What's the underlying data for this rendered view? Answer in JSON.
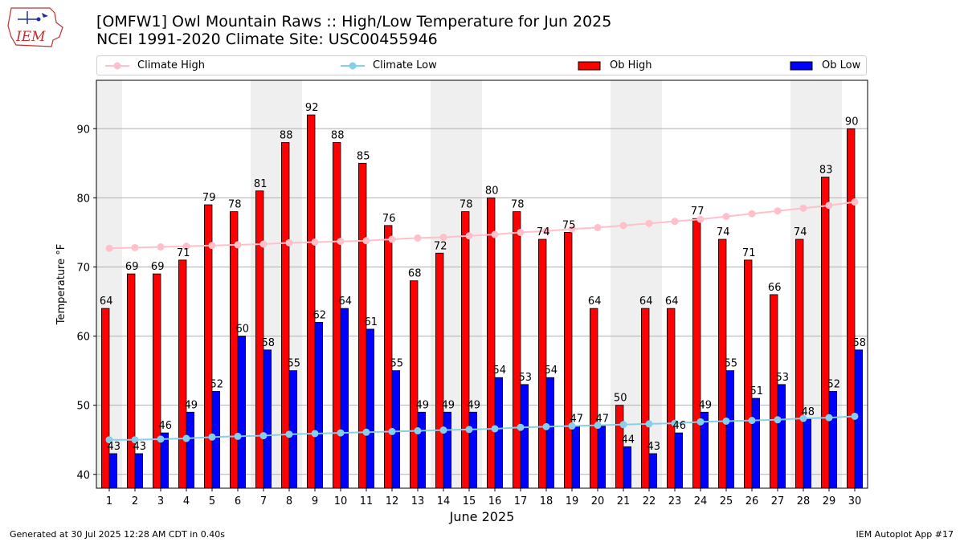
{
  "logo": {
    "text": "IEM"
  },
  "title": {
    "line1": "[OMFW1] Owl Mountain Raws :: High/Low Temperature for Jun 2025",
    "line2": "NCEI 1991-2020 Climate Site: USC00455946"
  },
  "legend": [
    {
      "label": "Climate High",
      "kind": "line",
      "color": "#ffc0cb"
    },
    {
      "label": "Climate Low",
      "kind": "line",
      "color": "#87ceeb"
    },
    {
      "label": "Ob High",
      "kind": "bar",
      "color": "#ff0000"
    },
    {
      "label": "Ob Low",
      "kind": "bar",
      "color": "#0000ff"
    }
  ],
  "footer": {
    "left": "Generated at 30 Jul 2025 12:28 AM CDT in 0.40s",
    "right": "IEM Autoplot App #17"
  },
  "chart_data": {
    "type": "bar",
    "title": "[OMFW1] Owl Mountain Raws :: High/Low Temperature for Jun 2025",
    "subtitle": "NCEI 1991-2020 Climate Site: USC00455946",
    "xlabel": "June 2025",
    "ylabel": "Temperature °F",
    "ylim": [
      38,
      97
    ],
    "yticks": [
      40,
      50,
      60,
      70,
      80,
      90
    ],
    "grid": true,
    "legend_position": "top",
    "categories": [
      "1",
      "2",
      "3",
      "4",
      "5",
      "6",
      "7",
      "8",
      "9",
      "10",
      "11",
      "12",
      "13",
      "14",
      "15",
      "16",
      "17",
      "18",
      "19",
      "20",
      "21",
      "22",
      "23",
      "24",
      "25",
      "26",
      "27",
      "28",
      "29",
      "30"
    ],
    "weekend_shading": [
      1,
      7,
      8,
      14,
      15,
      21,
      22,
      28,
      29
    ],
    "series": [
      {
        "name": "Ob High",
        "type": "bar",
        "color": "#ff0000",
        "values": [
          64,
          69,
          69,
          71,
          79,
          78,
          81,
          88,
          92,
          88,
          85,
          76,
          68,
          72,
          78,
          80,
          78,
          74,
          75,
          64,
          50,
          64,
          64,
          77,
          74,
          71,
          66,
          74,
          83,
          90
        ]
      },
      {
        "name": "Ob Low",
        "type": "bar",
        "color": "#0000ff",
        "values": [
          43,
          43,
          46,
          49,
          52,
          60,
          58,
          55,
          62,
          64,
          61,
          55,
          49,
          49,
          49,
          54,
          53,
          54,
          47,
          47,
          44,
          43,
          46,
          49,
          55,
          51,
          53,
          48,
          52,
          58
        ]
      },
      {
        "name": "Climate High",
        "type": "line",
        "color": "#ffc0cb",
        "values": [
          72.7,
          72.8,
          72.9,
          73.0,
          73.1,
          73.2,
          73.3,
          73.5,
          73.6,
          73.7,
          73.8,
          74.0,
          74.2,
          74.3,
          74.5,
          74.7,
          75.0,
          75.2,
          75.5,
          75.7,
          76.0,
          76.3,
          76.6,
          76.9,
          77.3,
          77.7,
          78.1,
          78.5,
          78.9,
          79.4
        ]
      },
      {
        "name": "Climate Low",
        "type": "line",
        "color": "#87ceeb",
        "values": [
          45.0,
          45.0,
          45.1,
          45.2,
          45.4,
          45.5,
          45.6,
          45.8,
          45.9,
          46.0,
          46.1,
          46.2,
          46.3,
          46.4,
          46.5,
          46.6,
          46.8,
          46.9,
          47.0,
          47.1,
          47.2,
          47.3,
          47.4,
          47.6,
          47.7,
          47.8,
          47.9,
          48.1,
          48.2,
          48.4
        ]
      }
    ]
  }
}
